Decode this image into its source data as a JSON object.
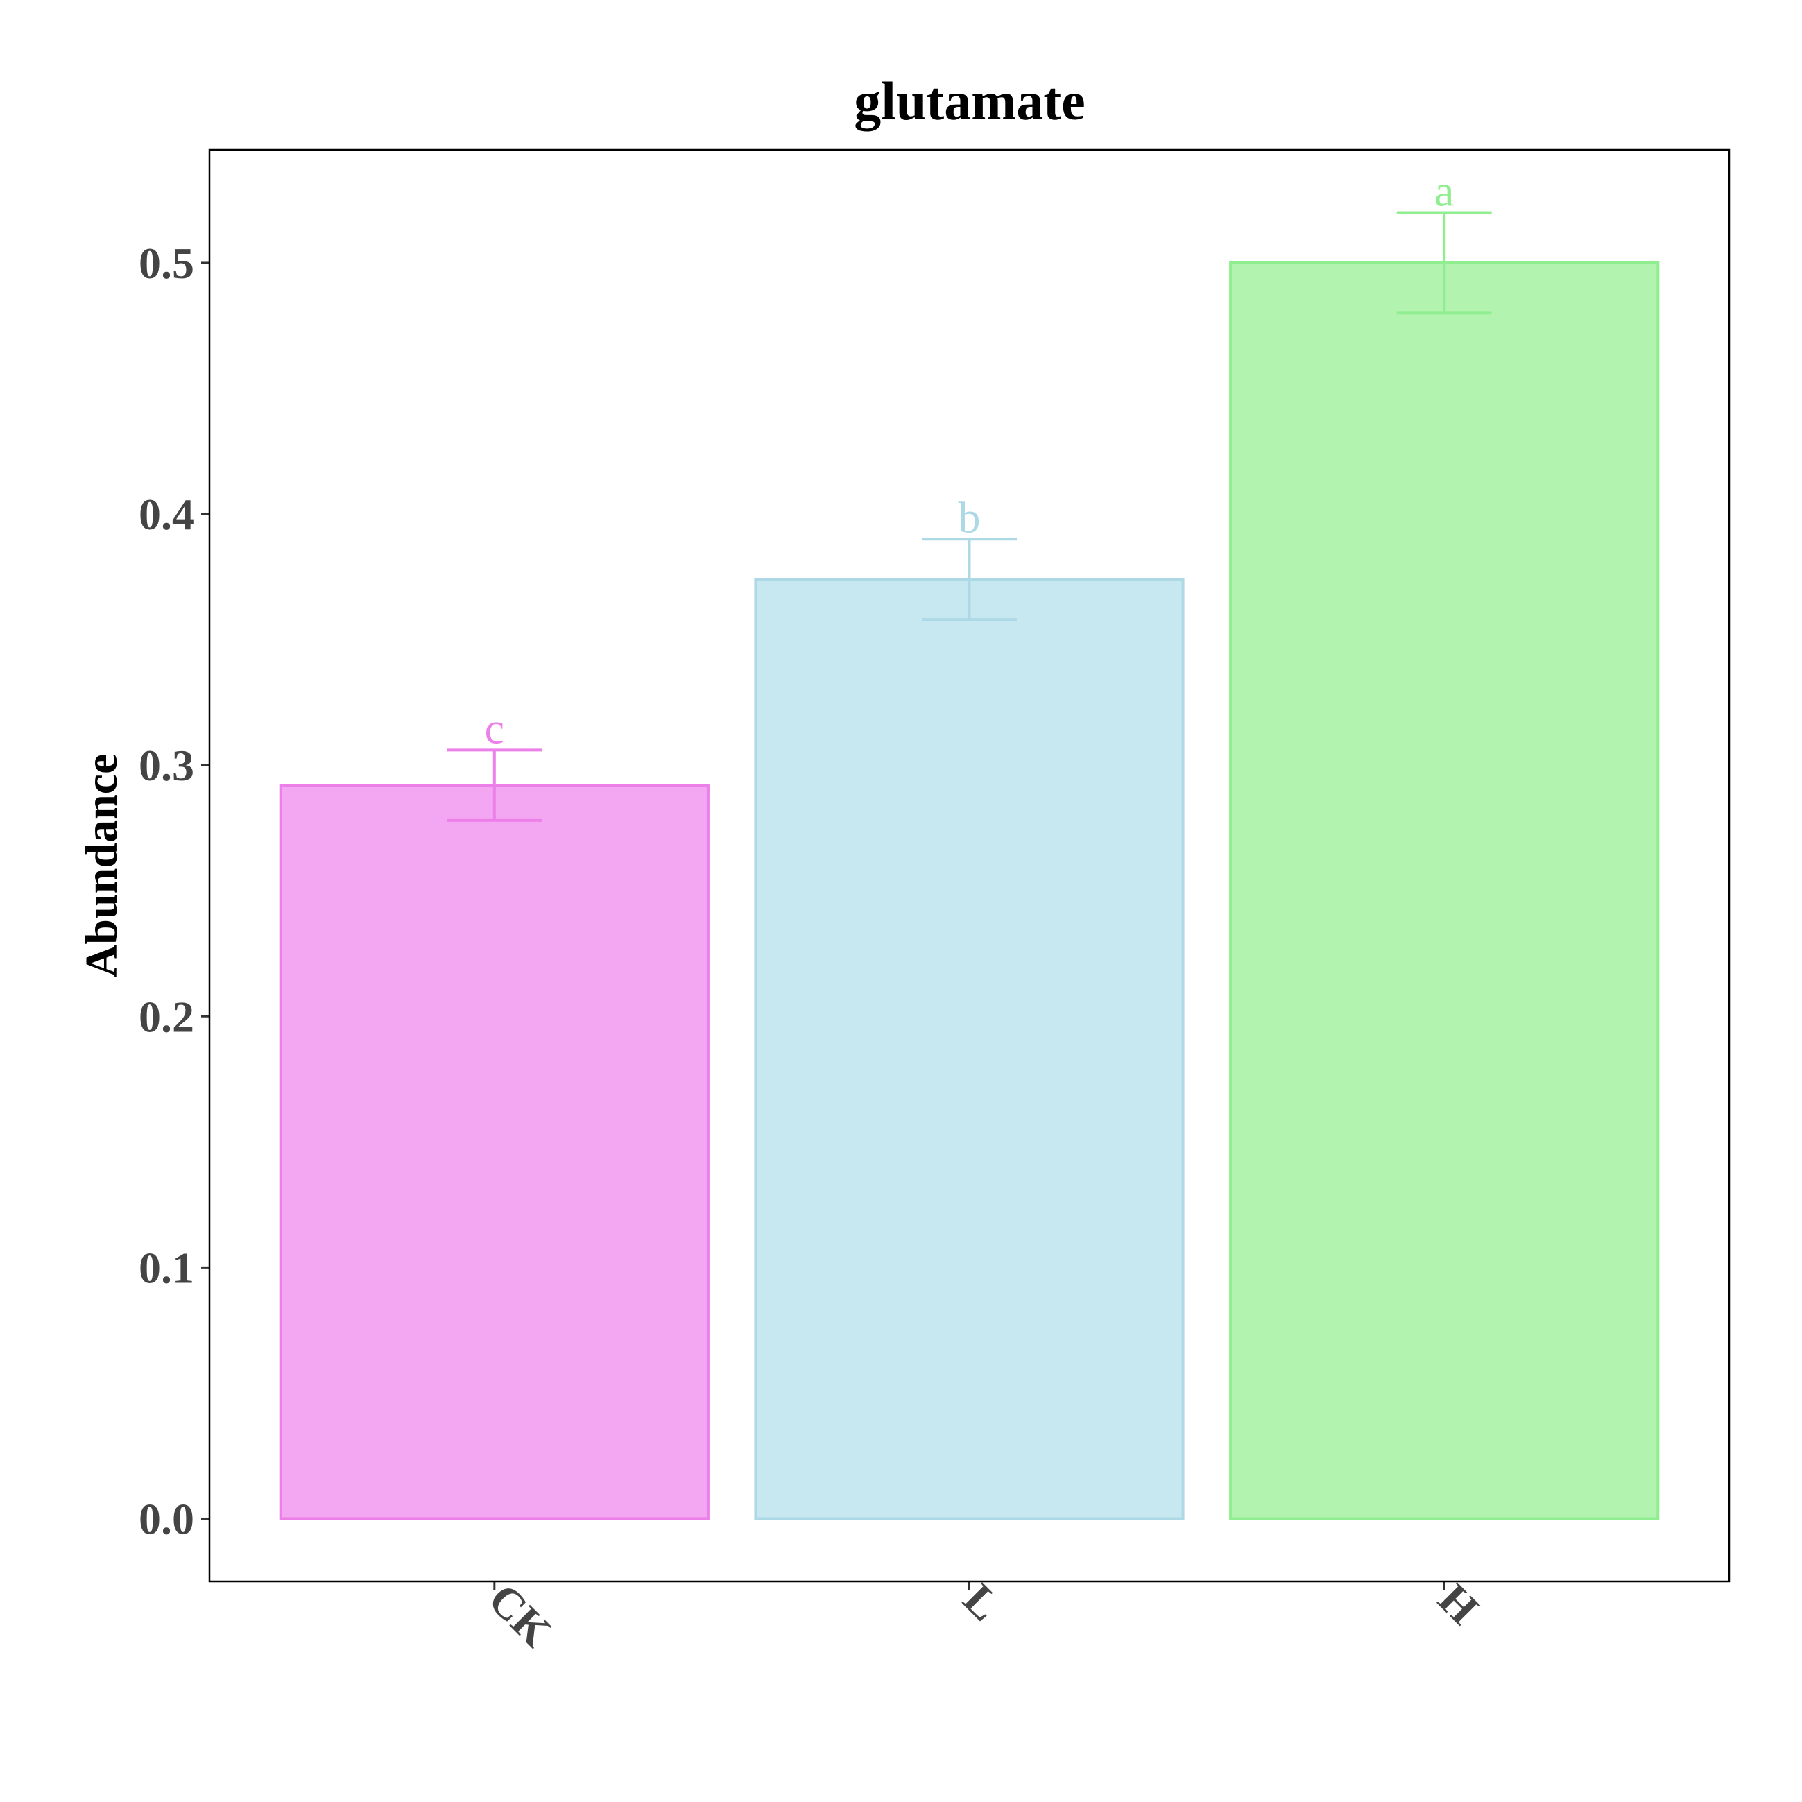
{
  "chart_data": {
    "type": "bar",
    "title": "glutamate",
    "xlabel": "",
    "ylabel": "Abundance",
    "categories": [
      "CK",
      "L",
      "H"
    ],
    "values": [
      0.292,
      0.374,
      0.5
    ],
    "error_low": [
      0.278,
      0.358,
      0.48
    ],
    "error_high": [
      0.306,
      0.39,
      0.52
    ],
    "significance_labels": [
      "c",
      "b",
      "a"
    ],
    "fill_colors": [
      "#f3a6f1",
      "#c8e8f1",
      "#b2f3b0"
    ],
    "stroke_colors": [
      "#ec80e8",
      "#add8e6",
      "#90ee90"
    ],
    "ylim": [
      -0.025,
      0.545
    ],
    "yticks": [
      "0.0",
      "0.1",
      "0.2",
      "0.3",
      "0.4",
      "0.5"
    ],
    "ytick_values": [
      0.0,
      0.1,
      0.2,
      0.3,
      0.4,
      0.5
    ],
    "grid": false,
    "legend": "none"
  }
}
